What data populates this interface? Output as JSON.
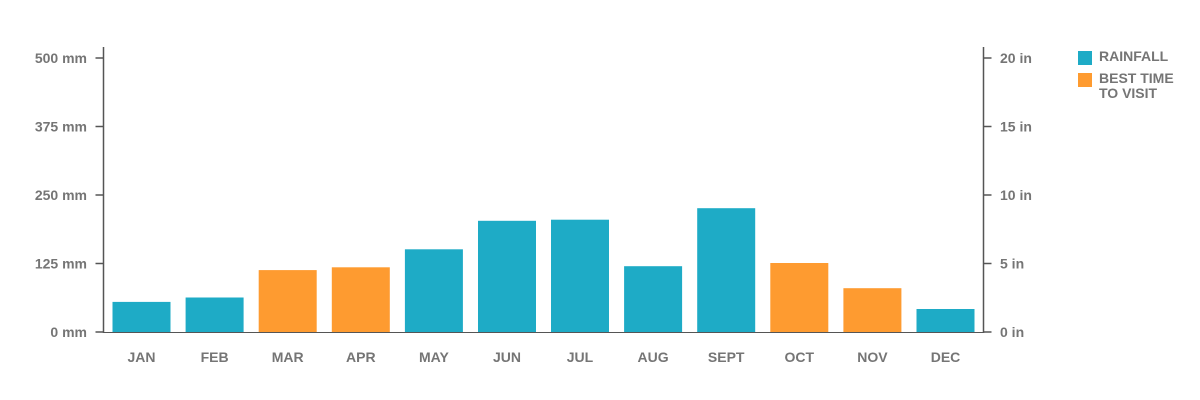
{
  "chart_data": {
    "type": "bar",
    "categories": [
      "JAN",
      "FEB",
      "MAR",
      "APR",
      "MAY",
      "JUN",
      "JUL",
      "AUG",
      "SEPT",
      "OCT",
      "NOV",
      "DEC"
    ],
    "values": [
      55,
      63,
      113,
      118,
      151,
      203,
      205,
      120,
      226,
      126,
      80,
      42
    ],
    "highlight": [
      false,
      false,
      true,
      true,
      false,
      false,
      false,
      false,
      false,
      true,
      true,
      false
    ],
    "left_axis": {
      "unit": "mm",
      "ylim": [
        0,
        500
      ],
      "ticks": [
        0,
        125,
        250,
        375,
        500
      ],
      "tick_labels": [
        "0 mm",
        "125 mm",
        "250 mm",
        "375 mm",
        "500 mm"
      ]
    },
    "right_axis": {
      "unit": "in",
      "ylim": [
        0,
        20
      ],
      "ticks": [
        0,
        5,
        10,
        15,
        20
      ],
      "tick_labels": [
        "0 in",
        "5 in",
        "10 in",
        "15 in",
        "20 in"
      ]
    },
    "xlabel": "",
    "ylabel": "",
    "grid": false,
    "legend": {
      "placement": "top-right",
      "entries": [
        {
          "label": "RAINFALL",
          "color": "#1eabc6"
        },
        {
          "label": "BEST TIME TO VISIT",
          "color": "#fe9b30"
        }
      ]
    },
    "colors": {
      "rainfall": "#1eabc6",
      "best_time": "#fe9b30",
      "axis": "#555555",
      "text": "#757575"
    }
  }
}
